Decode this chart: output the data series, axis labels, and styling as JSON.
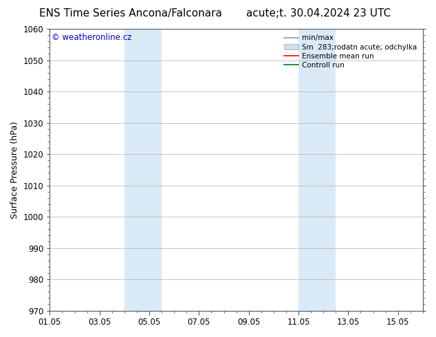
{
  "title_left": "ENS Time Series Ancona/Falconara",
  "title_right": "acute;t. 30.04.2024 23 UTC",
  "ylabel": "Surface Pressure (hPa)",
  "ylim": [
    970,
    1060
  ],
  "yticks": [
    970,
    980,
    990,
    1000,
    1010,
    1020,
    1030,
    1040,
    1050,
    1060
  ],
  "xtick_labels": [
    "01.05",
    "03.05",
    "05.05",
    "07.05",
    "09.05",
    "11.05",
    "13.05",
    "15.05"
  ],
  "xtick_days": [
    1,
    3,
    5,
    7,
    9,
    11,
    13,
    15
  ],
  "xlim_days": [
    1,
    16
  ],
  "shaded_regions": [
    {
      "x_start": 4.0,
      "x_end": 5.5,
      "color": "#daeaf7"
    },
    {
      "x_start": 11.0,
      "x_end": 12.5,
      "color": "#daeaf7"
    }
  ],
  "watermark": "© weatheronline.cz",
  "watermark_color": "#0000cc",
  "legend_entries": [
    {
      "label": "min/max",
      "color": "#999999",
      "lw": 1.2,
      "type": "line"
    },
    {
      "label": "Sm  283;rodatn acute; odchylka",
      "color": "#c8dff0",
      "lw": 8,
      "type": "band"
    },
    {
      "label": "Ensemble mean run",
      "color": "#ff0000",
      "lw": 1.2,
      "type": "line"
    },
    {
      "label": "Controll run",
      "color": "#008000",
      "lw": 1.2,
      "type": "line"
    }
  ],
  "bg_color": "#ffffff",
  "plot_bg_color": "#ffffff",
  "grid_color": "#bbbbbb",
  "title_fontsize": 11,
  "axis_label_fontsize": 9,
  "tick_fontsize": 8.5,
  "watermark_fontsize": 8.5,
  "legend_fontsize": 7.5
}
